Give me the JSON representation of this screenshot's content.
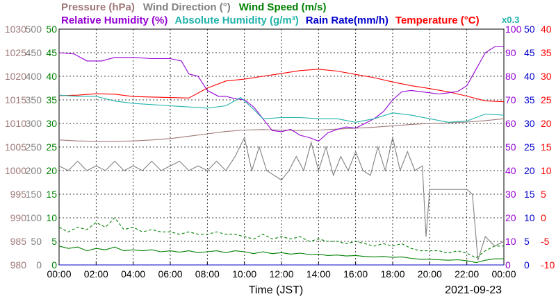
{
  "chart_data": {
    "type": "line",
    "grid": true,
    "legend_row1": [
      {
        "text": "Pressure (hPa)",
        "color": "#a07878"
      },
      {
        "text": "Wind Direction (°)",
        "color": "#808080"
      },
      {
        "text": "Wind Speed (m/s)",
        "color": "#008000"
      }
    ],
    "legend_row2": [
      {
        "text": "Relative Humidity (%)",
        "color": "#9400d3"
      },
      {
        "text": "Absolute Humidity (g/m³)",
        "color": "#20b2aa"
      },
      {
        "text": "Rain Rate(mm/h)",
        "color": "#0000cd"
      },
      {
        "text": "Temperature (°C)",
        "color": "#ff0000"
      }
    ],
    "scale_note": {
      "text": "x0.3",
      "color": "#20b2aa"
    },
    "xlabel": "Time (JST)",
    "date": "2021-09-23",
    "x_ticks": [
      "00:00",
      "02:00",
      "04:00",
      "06:00",
      "08:00",
      "10:00",
      "12:00",
      "14:00",
      "16:00",
      "18:00",
      "20:00",
      "22:00",
      "00:00"
    ],
    "x_range_hours": [
      0,
      24
    ],
    "axes": [
      {
        "name": "pressure",
        "color": "#a07878",
        "range": [
          980,
          1030
        ],
        "ticks": [
          "980",
          "985",
          "990",
          "995",
          "1000",
          "1005",
          "1010",
          "1015",
          "1020",
          "1025",
          "1030"
        ]
      },
      {
        "name": "wind_direction",
        "color": "#808080",
        "range": [
          0,
          500
        ],
        "ticks": [
          "0",
          "50",
          "100",
          "150",
          "200",
          "250",
          "300",
          "350",
          "400",
          "450",
          "500"
        ]
      },
      {
        "name": "wind_speed",
        "color": "#008000",
        "range": [
          0,
          50
        ],
        "ticks": [
          "0",
          "5",
          "10",
          "15",
          "20",
          "25",
          "30",
          "35",
          "40",
          "45",
          "50"
        ]
      },
      {
        "name": "humidity",
        "color": "#9400d3",
        "range": [
          0,
          100
        ],
        "ticks": [
          "0",
          "10",
          "20",
          "30",
          "40",
          "50",
          "60",
          "70",
          "80",
          "90",
          "100"
        ]
      },
      {
        "name": "rain_rate",
        "color": "#0000cd",
        "range": [
          0,
          50
        ],
        "ticks": [
          "0",
          "5",
          "10",
          "15",
          "20",
          "25",
          "30",
          "35",
          "40",
          "45",
          "50"
        ]
      },
      {
        "name": "temperature",
        "color": "#ff0000",
        "range": [
          -10,
          40
        ],
        "ticks": [
          "-10",
          "-5",
          "0",
          "5",
          "10",
          "15",
          "20",
          "25",
          "30",
          "35",
          "40"
        ]
      }
    ],
    "series": [
      {
        "name": "Pressure",
        "axis": "pressure",
        "color": "#a07878",
        "style": "solid",
        "x": [
          0,
          1,
          2,
          3,
          4,
          5,
          6,
          7,
          8,
          9,
          10,
          11,
          12,
          13,
          14,
          15,
          16,
          17,
          18,
          19,
          20,
          21,
          22,
          23,
          24
        ],
        "y": [
          1006.5,
          1006.3,
          1006.2,
          1006.2,
          1006.3,
          1006.5,
          1006.8,
          1007.3,
          1007.8,
          1008.3,
          1008.6,
          1008.7,
          1008.6,
          1008.5,
          1008.6,
          1008.8,
          1009.0,
          1009.2,
          1009.5,
          1009.8,
          1010.0,
          1010.1,
          1010.3,
          1010.6,
          1011.0
        ]
      },
      {
        "name": "Temperature",
        "axis": "temperature",
        "color": "#ff0000",
        "style": "solid",
        "x": [
          0,
          1,
          2,
          3,
          4,
          5,
          6,
          7,
          8,
          9,
          10,
          11,
          12,
          13,
          14,
          15,
          16,
          17,
          18,
          19,
          20,
          21,
          22,
          23,
          24
        ],
        "y": [
          25.9,
          26.0,
          26.3,
          26.2,
          25.7,
          25.6,
          25.5,
          25.4,
          27.5,
          29.0,
          29.4,
          30.0,
          30.6,
          31.2,
          31.5,
          31.1,
          30.4,
          29.7,
          28.8,
          28.0,
          27.4,
          26.7,
          25.8,
          24.8,
          24.6
        ]
      },
      {
        "name": "Relative Humidity",
        "axis": "humidity",
        "color": "#9400d3",
        "style": "solid",
        "x": [
          0,
          0.8,
          1.5,
          2.3,
          3.0,
          4.0,
          5.0,
          6.0,
          6.6,
          7.0,
          7.5,
          8.0,
          8.6,
          9.0,
          9.5,
          10.0,
          10.5,
          11.0,
          11.5,
          12.0,
          12.5,
          13.0,
          13.5,
          14.0,
          14.5,
          15.0,
          15.5,
          16.0,
          16.5,
          17.0,
          17.5,
          18.0,
          18.5,
          19.0,
          19.5,
          20.0,
          20.5,
          21.0,
          21.5,
          22.0,
          22.5,
          23.0,
          23.5,
          24.0
        ],
        "y": [
          90,
          89.5,
          86.5,
          86.5,
          88,
          88,
          87.5,
          87.5,
          86.5,
          81,
          80,
          74,
          71.5,
          71.5,
          70.5,
          70,
          67,
          62,
          57,
          56.5,
          57.5,
          55,
          54,
          52.5,
          56,
          57.5,
          58.5,
          58,
          60,
          62,
          65,
          70,
          73.5,
          74,
          73.5,
          73,
          72.5,
          73,
          73.5,
          76,
          83,
          90,
          92.5,
          92.5
        ]
      },
      {
        "name": "Absolute Humidity",
        "axis": "humidity",
        "color": "#20b2aa",
        "style": "solid",
        "x": [
          0,
          1,
          2,
          3,
          4,
          5,
          6,
          7,
          8,
          9,
          9.8,
          10.5,
          11,
          12,
          13,
          14,
          15,
          16,
          17,
          18,
          19,
          20,
          21,
          22,
          23,
          24
        ],
        "y": [
          72,
          71.5,
          71.5,
          69.5,
          68.5,
          68,
          67.5,
          67,
          66.5,
          67.5,
          71,
          66,
          62,
          62.5,
          62.5,
          62,
          62,
          60.5,
          62,
          64.5,
          63.5,
          62,
          60.5,
          61,
          64,
          63.5
        ]
      },
      {
        "name": "Wind Direction",
        "axis": "wind_direction",
        "color": "#808080",
        "style": "solid",
        "x": [
          0,
          0.5,
          1,
          1.5,
          2,
          2.5,
          3,
          3.5,
          4,
          4.5,
          5,
          5.5,
          6,
          6.5,
          7,
          7.5,
          8,
          8.5,
          9,
          9.5,
          10,
          10.4,
          10.8,
          11.2,
          11.6,
          12,
          12.4,
          12.8,
          13.2,
          13.6,
          14,
          14.4,
          14.8,
          15.2,
          15.6,
          16,
          16.4,
          16.8,
          17.2,
          17.6,
          18,
          18.4,
          18.8,
          19.2,
          19.6,
          19.8,
          20,
          20.5,
          21,
          21.5,
          22,
          22.3,
          22.6,
          23,
          23.5,
          24
        ],
        "y": [
          210,
          200,
          220,
          200,
          210,
          200,
          220,
          200,
          210,
          200,
          220,
          200,
          210,
          220,
          200,
          210,
          200,
          220,
          200,
          230,
          270,
          200,
          250,
          200,
          190,
          180,
          200,
          230,
          200,
          260,
          200,
          250,
          190,
          230,
          200,
          240,
          200,
          190,
          250,
          200,
          270,
          200,
          240,
          200,
          210,
          60,
          160,
          160,
          160,
          160,
          160,
          150,
          10,
          60,
          40,
          50
        ]
      },
      {
        "name": "Wind Speed (max)",
        "axis": "wind_speed",
        "color": "#008000",
        "style": "dashed",
        "x": [
          0,
          0.5,
          1,
          1.5,
          2,
          2.5,
          3,
          3.5,
          4,
          4.5,
          5,
          5.5,
          6,
          6.5,
          7,
          7.5,
          8,
          8.5,
          9,
          9.5,
          10,
          10.5,
          11,
          11.5,
          12,
          12.5,
          13,
          13.5,
          14,
          14.5,
          15,
          15.5,
          16,
          16.5,
          17,
          17.5,
          18,
          18.5,
          19,
          19.5,
          20,
          20.5,
          21,
          21.5,
          22,
          22.5,
          23,
          23.5,
          24
        ],
        "y": [
          8,
          7,
          8,
          7.5,
          9,
          8,
          10,
          7.5,
          8,
          7,
          7.5,
          7,
          7,
          6.5,
          7,
          6.5,
          6.5,
          7,
          6.5,
          6.5,
          6,
          5.5,
          6.5,
          5.5,
          6,
          5.5,
          6,
          5,
          5.5,
          5,
          5,
          4.5,
          5,
          4.5,
          4,
          4.5,
          4,
          4.5,
          3.5,
          3,
          3,
          3,
          2.5,
          3,
          2.5,
          1.5,
          3,
          4,
          4
        ]
      },
      {
        "name": "Wind Speed (avg)",
        "axis": "wind_speed",
        "color": "#008000",
        "style": "solid",
        "x": [
          0,
          0.5,
          1,
          1.5,
          2,
          2.5,
          3,
          3.5,
          4,
          4.5,
          5,
          5.5,
          6,
          6.5,
          7,
          7.5,
          8,
          8.5,
          9,
          9.5,
          10,
          10.5,
          11,
          11.5,
          12,
          12.5,
          13,
          13.5,
          14,
          14.5,
          15,
          15.5,
          16,
          16.5,
          17,
          17.5,
          18,
          18.5,
          19,
          19.5,
          20,
          20.5,
          21,
          21.5,
          22,
          22.5,
          23,
          23.5,
          24
        ],
        "y": [
          4,
          3.5,
          3.8,
          3,
          3.5,
          3.2,
          3.8,
          3,
          3.2,
          3,
          3.2,
          2.8,
          3,
          2.7,
          3,
          2.6,
          2.8,
          3,
          2.6,
          3,
          2.8,
          2.4,
          2.8,
          2.4,
          2.6,
          2.3,
          2.5,
          2.2,
          2.3,
          2,
          2.1,
          1.9,
          2,
          1.8,
          1.7,
          1.8,
          1.6,
          1.7,
          1.4,
          1.2,
          1.2,
          1.1,
          1,
          1.1,
          0.9,
          0.5,
          1,
          1.3,
          1.3
        ]
      },
      {
        "name": "Rain Rate",
        "axis": "rain_rate",
        "color": "#0000cd",
        "style": "solid",
        "x": [
          0,
          24
        ],
        "y": [
          0,
          0
        ]
      }
    ]
  }
}
